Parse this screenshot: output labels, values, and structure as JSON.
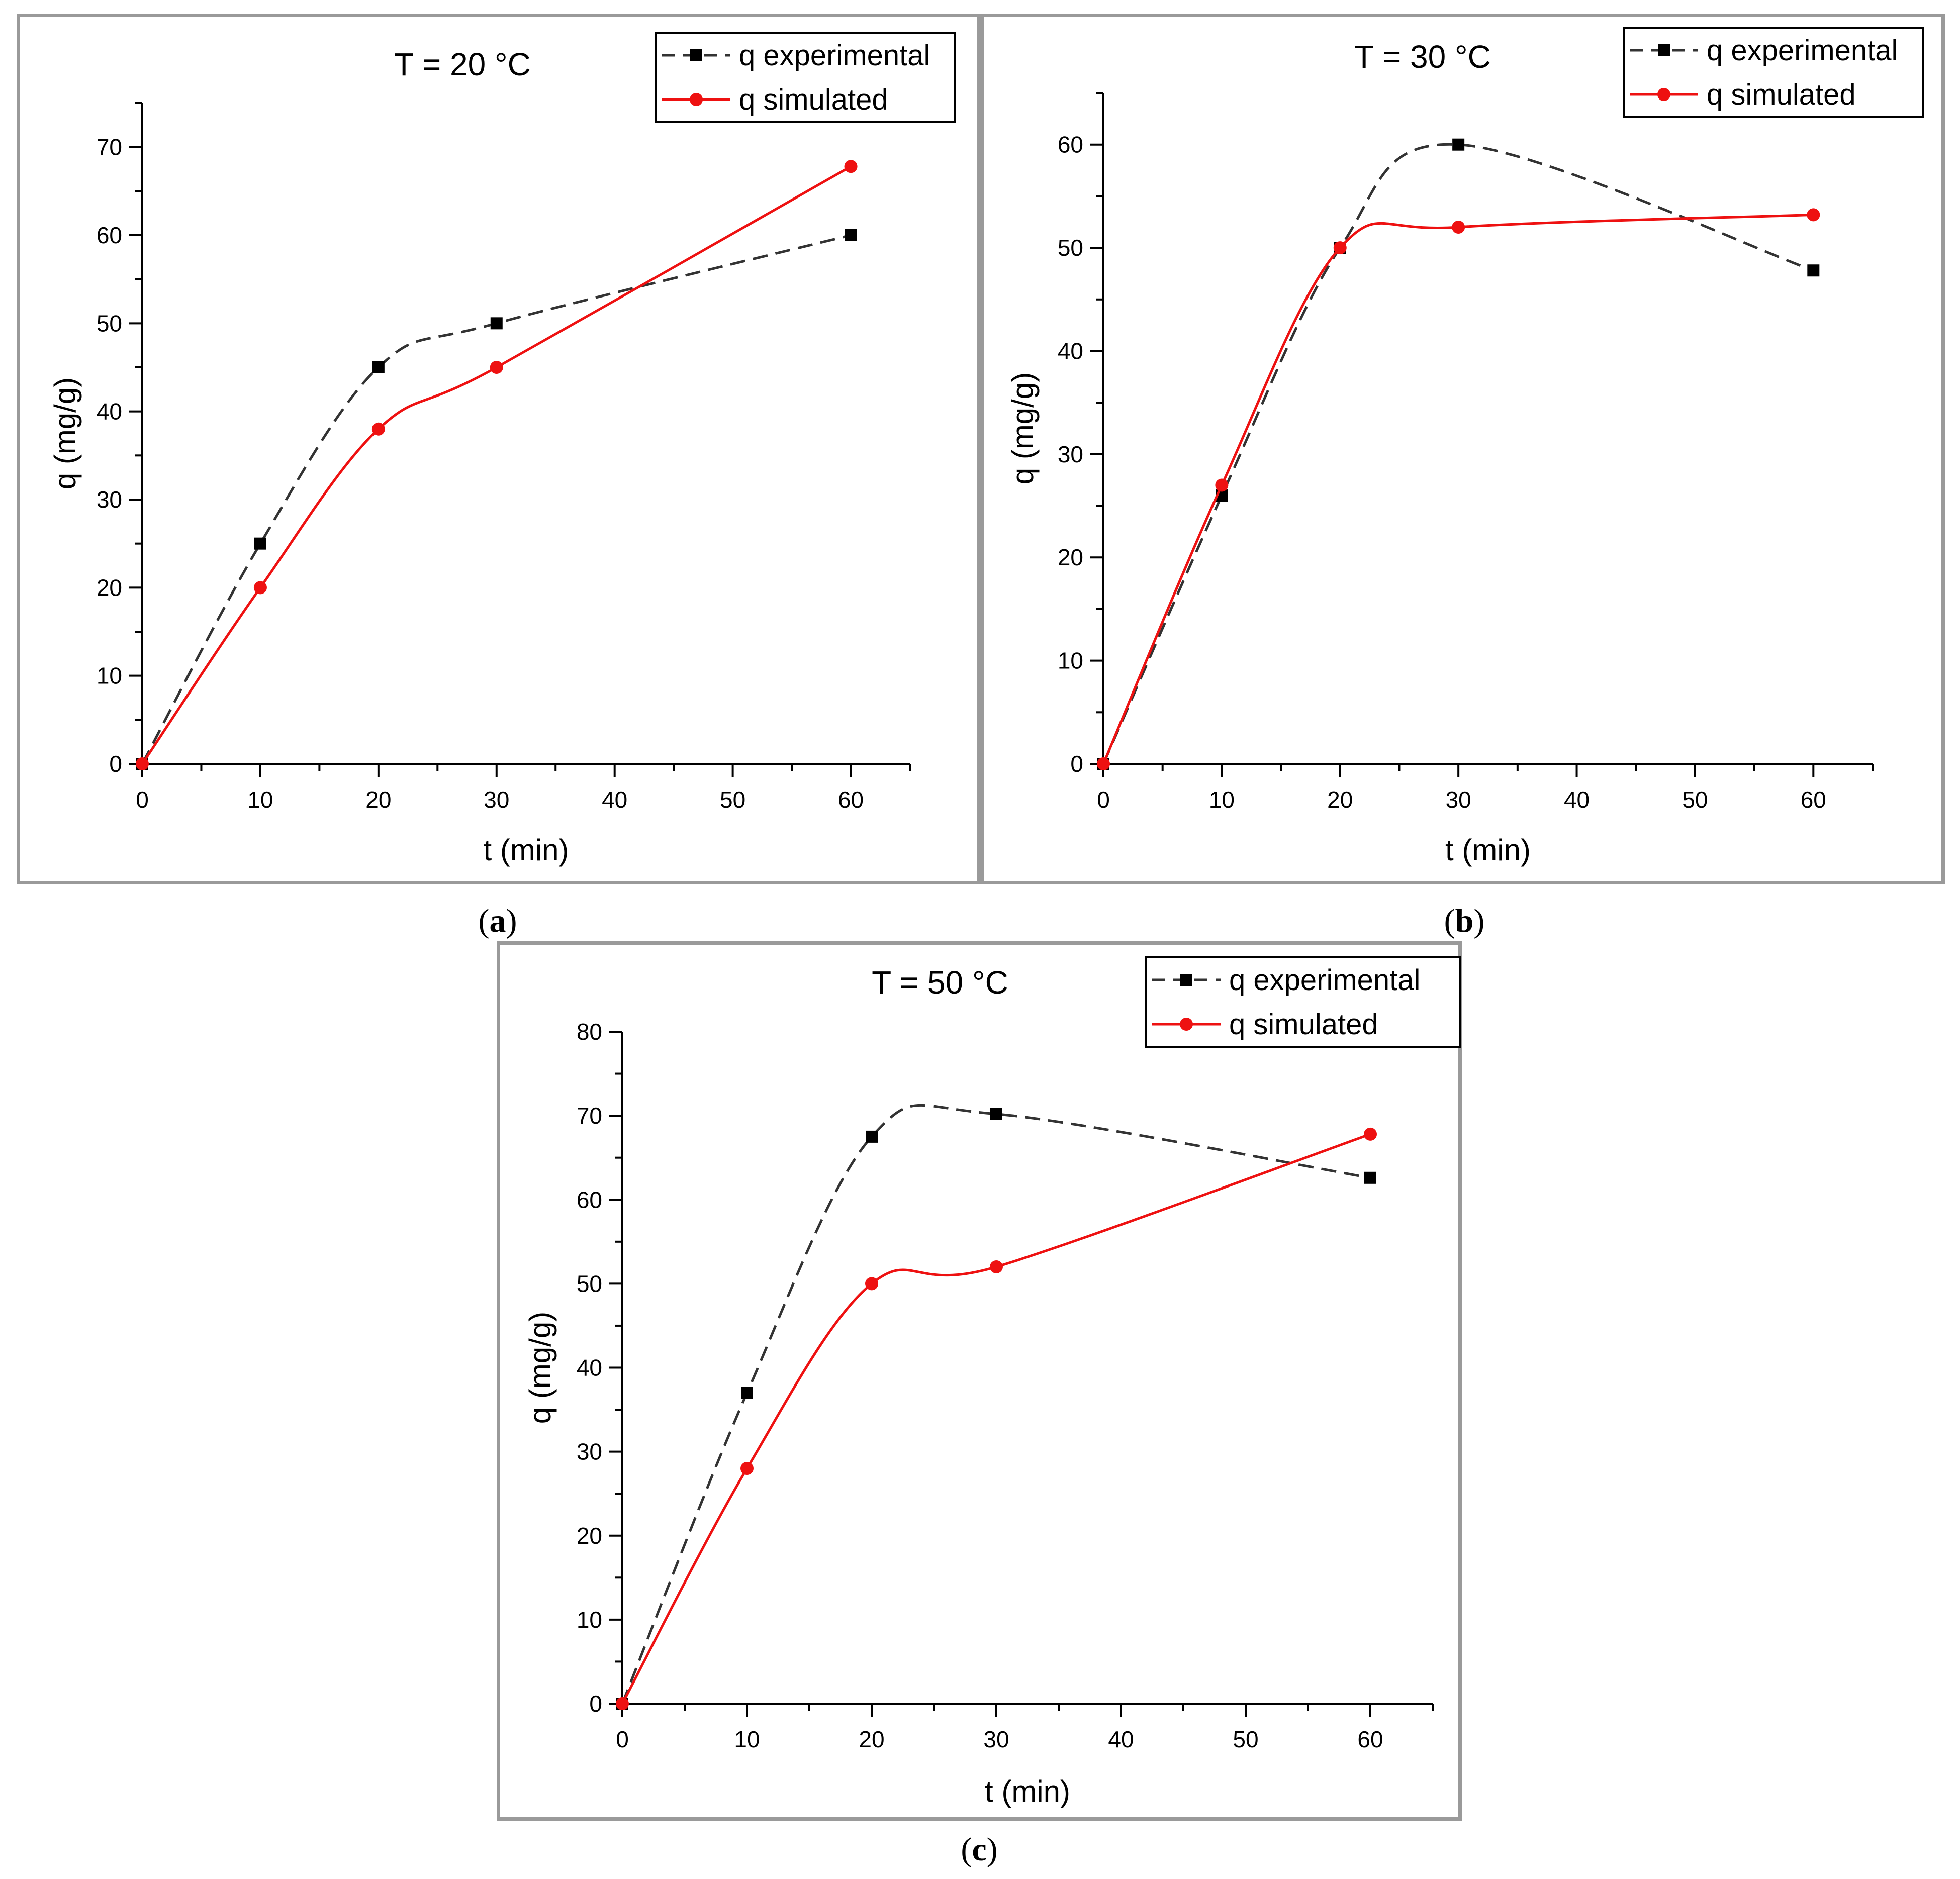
{
  "chart_data": [
    {
      "type": "line",
      "panel_label": "a",
      "title": "T = 20 °C",
      "xlabel": "t (min)",
      "ylabel": "q (mg/g)",
      "xlim": [
        0,
        65
      ],
      "ylim": [
        0,
        75
      ],
      "xticks": [
        0,
        10,
        20,
        30,
        40,
        50,
        60
      ],
      "yticks": [
        0,
        10,
        20,
        30,
        40,
        50,
        60,
        70
      ],
      "legend_position": "top-right",
      "series": [
        {
          "name": "q experimental",
          "style": "dashed-square",
          "color": "#333333",
          "marker_color": "#000000",
          "x": [
            0,
            10,
            20,
            30,
            60
          ],
          "y": [
            0,
            25,
            45,
            50,
            60
          ]
        },
        {
          "name": "q simulated",
          "style": "solid-circle",
          "color": "#ee1111",
          "marker_color": "#ee1111",
          "x": [
            0,
            10,
            20,
            30,
            60
          ],
          "y": [
            0,
            20,
            38,
            45,
            67.8
          ]
        }
      ]
    },
    {
      "type": "line",
      "panel_label": "b",
      "title": "T = 30 °C",
      "xlabel": "t (min)",
      "ylabel": "q (mg/g)",
      "xlim": [
        0,
        65
      ],
      "ylim": [
        0,
        65
      ],
      "xticks": [
        0,
        10,
        20,
        30,
        40,
        50,
        60
      ],
      "yticks": [
        0,
        10,
        20,
        30,
        40,
        50,
        60
      ],
      "legend_position": "top-right",
      "series": [
        {
          "name": "q experimental",
          "style": "dashed-square",
          "color": "#333333",
          "marker_color": "#000000",
          "x": [
            0,
            10,
            20,
            30,
            60
          ],
          "y": [
            0,
            26,
            50,
            60,
            47.8
          ]
        },
        {
          "name": "q simulated",
          "style": "solid-circle",
          "color": "#ee1111",
          "marker_color": "#ee1111",
          "x": [
            0,
            10,
            20,
            30,
            60
          ],
          "y": [
            0,
            27,
            50,
            52,
            53.2
          ]
        }
      ]
    },
    {
      "type": "line",
      "panel_label": "c",
      "title": "T = 50 °C",
      "xlabel": "t (min)",
      "ylabel": "q (mg/g)",
      "xlim": [
        0,
        65
      ],
      "ylim": [
        0,
        80
      ],
      "xticks": [
        0,
        10,
        20,
        30,
        40,
        50,
        60
      ],
      "yticks": [
        0,
        10,
        20,
        30,
        40,
        50,
        60,
        70,
        80
      ],
      "legend_position": "top-right",
      "series": [
        {
          "name": "q experimental",
          "style": "dashed-square",
          "color": "#333333",
          "marker_color": "#000000",
          "x": [
            0,
            10,
            20,
            30,
            60
          ],
          "y": [
            0,
            37,
            67.5,
            70.2,
            62.6
          ]
        },
        {
          "name": "q simulated",
          "style": "solid-circle",
          "color": "#ee1111",
          "marker_color": "#ee1111",
          "x": [
            0,
            10,
            20,
            30,
            60
          ],
          "y": [
            0,
            28,
            50,
            52,
            67.8
          ]
        }
      ]
    }
  ]
}
